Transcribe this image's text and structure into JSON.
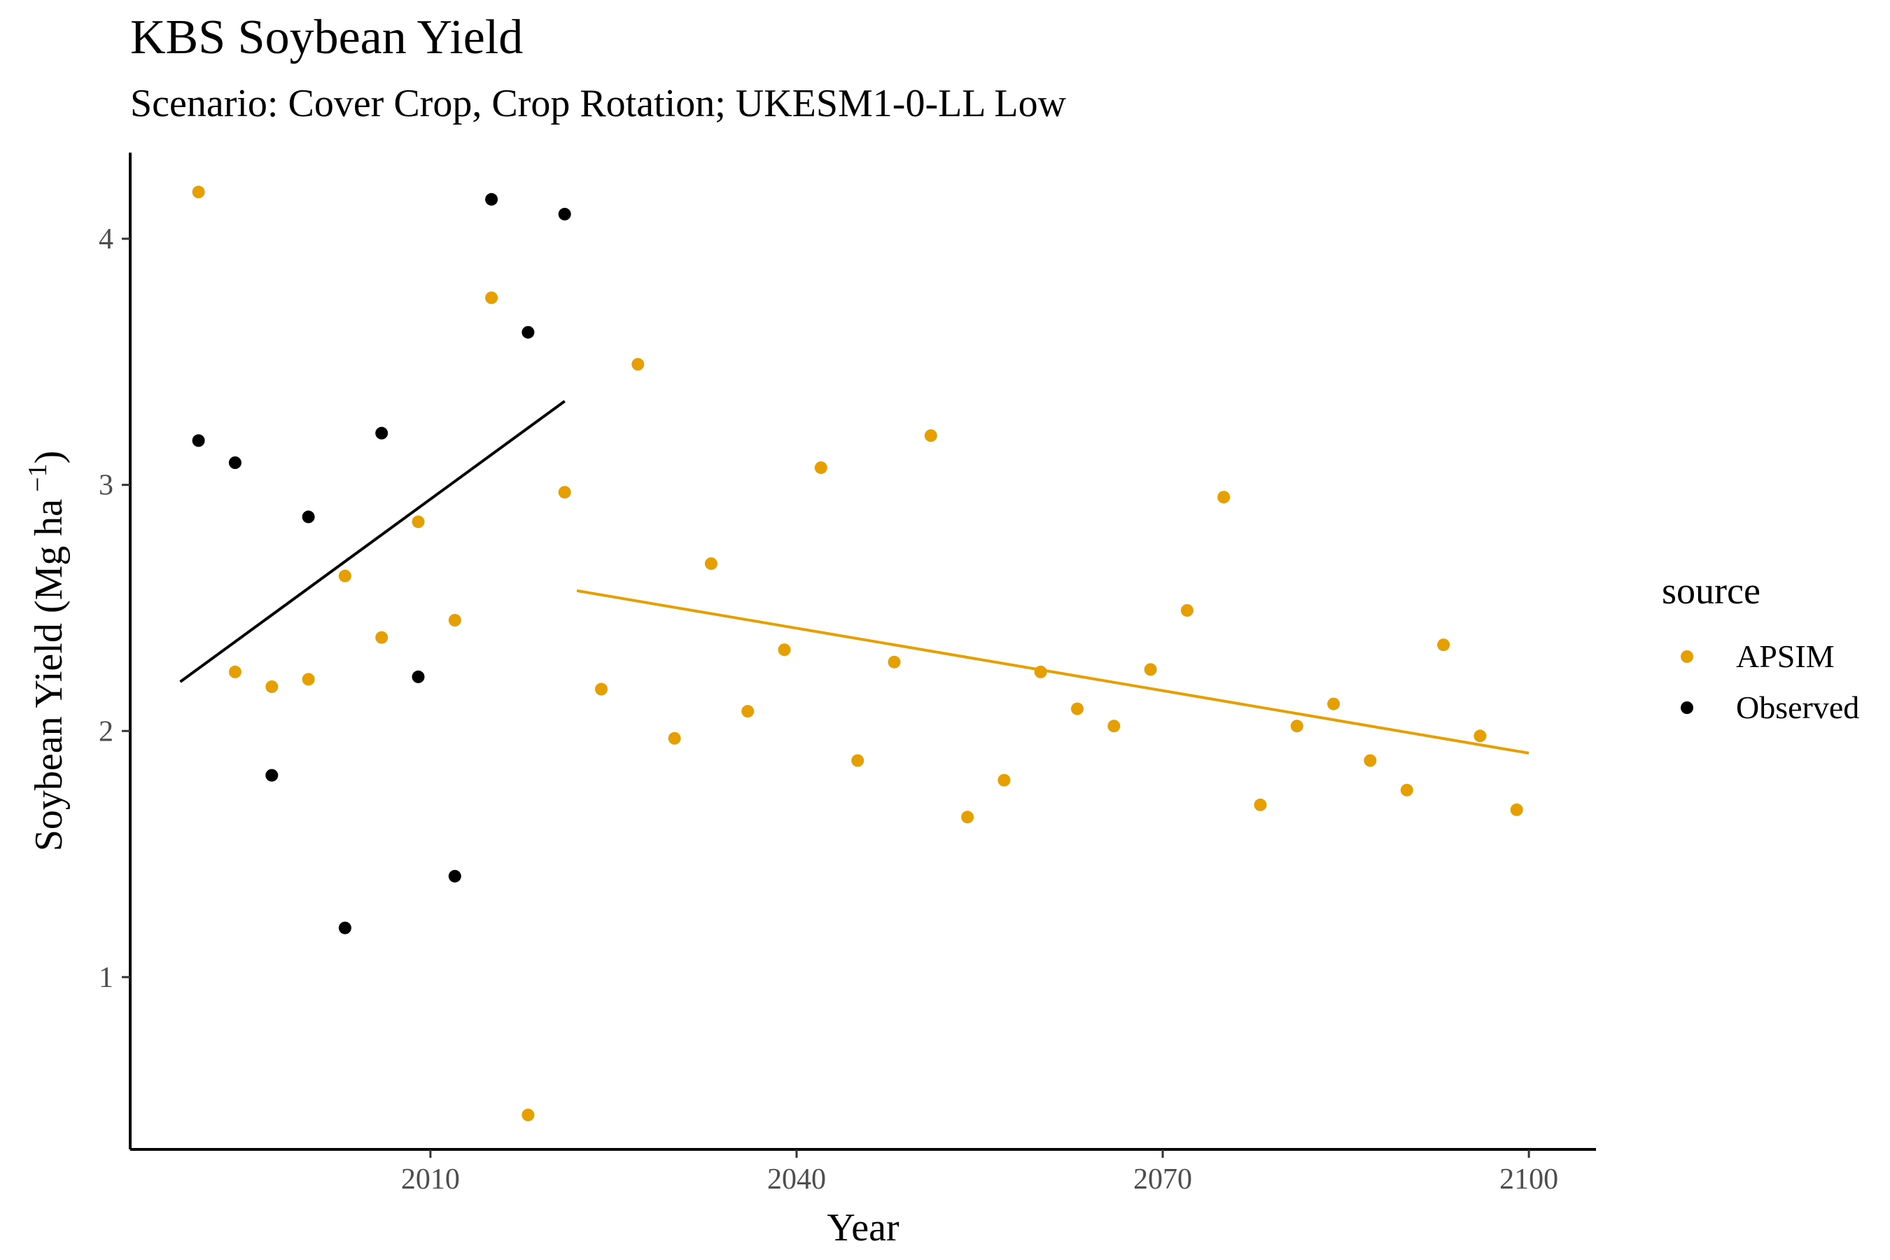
{
  "chart_data": {
    "type": "scatter",
    "title": "KBS Soybean Yield",
    "subtitle": "Scenario: Cover Crop, Crop Rotation; UKESM1-0-LL Low",
    "xlabel": "Year",
    "ylabel": "Soybean Yield (Mg ha",
    "ylabel_sup": "−1",
    "ylabel_close": ")",
    "xlim": [
      1985.4,
      2105.5
    ],
    "ylim": [
      0.3,
      4.35
    ],
    "x_ticks": [
      2010,
      2040,
      2070,
      2100
    ],
    "x_tick_labels": [
      "2010",
      "2040",
      "2070",
      "2100"
    ],
    "y_ticks": [
      1,
      2,
      3,
      4
    ],
    "y_tick_labels": [
      "1",
      "2",
      "3",
      "4"
    ],
    "grid": false,
    "legend": {
      "title": "source",
      "placement": "right"
    },
    "series": [
      {
        "name": "APSIM",
        "color": "#E69F00",
        "points": [
          [
            1991,
            4.19
          ],
          [
            1994,
            2.24
          ],
          [
            1997,
            2.18
          ],
          [
            2000,
            2.21
          ],
          [
            2003,
            2.63
          ],
          [
            2006,
            2.38
          ],
          [
            2009,
            2.85
          ],
          [
            2012,
            2.45
          ],
          [
            2015,
            3.76
          ],
          [
            2018,
            0.44
          ],
          [
            2021,
            2.97
          ],
          [
            2024,
            2.17
          ],
          [
            2027,
            3.49
          ],
          [
            2030,
            1.97
          ],
          [
            2033,
            2.68
          ],
          [
            2036,
            2.08
          ],
          [
            2039,
            2.33
          ],
          [
            2042,
            3.07
          ],
          [
            2045,
            1.88
          ],
          [
            2048,
            2.28
          ],
          [
            2051,
            3.2
          ],
          [
            2054,
            1.65
          ],
          [
            2057,
            1.8
          ],
          [
            2060,
            2.24
          ],
          [
            2063,
            2.09
          ],
          [
            2066,
            2.02
          ],
          [
            2069,
            2.25
          ],
          [
            2072,
            2.49
          ],
          [
            2075,
            2.95
          ],
          [
            2078,
            1.7
          ],
          [
            2081,
            2.02
          ],
          [
            2084,
            2.11
          ],
          [
            2087,
            1.88
          ],
          [
            2090,
            1.76
          ],
          [
            2093,
            2.35
          ],
          [
            2096,
            1.98
          ],
          [
            2099,
            1.68
          ]
        ],
        "trend": [
          [
            2022,
            2.57
          ],
          [
            2100,
            1.91
          ]
        ]
      },
      {
        "name": "Observed",
        "color": "#000000",
        "points": [
          [
            1991,
            3.18
          ],
          [
            1994,
            3.09
          ],
          [
            1997,
            1.82
          ],
          [
            2000,
            2.87
          ],
          [
            2003,
            1.2
          ],
          [
            2006,
            3.21
          ],
          [
            2009,
            2.22
          ],
          [
            2012,
            1.41
          ],
          [
            2015,
            4.16
          ],
          [
            2018,
            3.62
          ],
          [
            2021,
            4.1
          ]
        ],
        "trend": [
          [
            1989.5,
            2.2
          ],
          [
            2021,
            3.34
          ]
        ]
      }
    ]
  }
}
